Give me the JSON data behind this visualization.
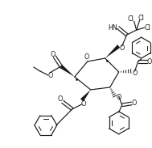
{
  "background": "#ffffff",
  "line_color": "#1a1a1a",
  "line_width": 0.85,
  "font_size": 5.8,
  "fig_width": 1.89,
  "fig_height": 1.83,
  "dpi": 100,
  "ring_O": [
    108,
    78
  ],
  "C1": [
    128,
    70
  ],
  "C2": [
    143,
    85
  ],
  "C3": [
    135,
    103
  ],
  "C4": [
    113,
    108
  ],
  "C5": [
    95,
    95
  ],
  "C5_to_O_ring": [
    95,
    95
  ]
}
